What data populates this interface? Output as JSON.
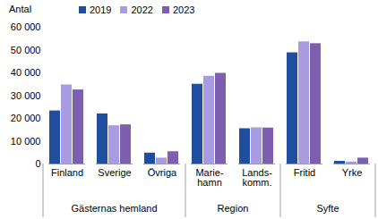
{
  "chart_data": {
    "type": "bar",
    "y_label": "Antal",
    "categories": [
      "Finland",
      "Sverige",
      "Övriga",
      "Marie-\nhamn",
      "Lands-\nkomm.",
      "Fritid",
      "Yrke"
    ],
    "category_groups": [
      {
        "label": "Gästernas hemland",
        "categories": [
          "Finland",
          "Sverige",
          "Övriga"
        ]
      },
      {
        "label": "Region",
        "categories": [
          "Marie-\nhamn",
          "Lands-\nkomm."
        ]
      },
      {
        "label": "Syfte",
        "categories": [
          "Fritid",
          "Yrke"
        ]
      }
    ],
    "series": [
      {
        "name": "2019",
        "color": "#1f4e9e",
        "values": [
          23300,
          22000,
          4800,
          35000,
          15500,
          48800,
          1200
        ]
      },
      {
        "name": "2022",
        "color": "#a99be0",
        "values": [
          34700,
          16800,
          2600,
          38500,
          15900,
          53600,
          900
        ]
      },
      {
        "name": "2023",
        "color": "#7d5fb0",
        "values": [
          32500,
          17200,
          5400,
          39800,
          15800,
          52800,
          2600
        ]
      }
    ],
    "ylim": [
      0,
      60000
    ],
    "yticks": [
      0,
      {
        "value": 10000,
        "label": "10 000"
      },
      {
        "value": 20000,
        "label": "20 000"
      },
      {
        "value": 30000,
        "label": "30 000"
      },
      {
        "value": 40000,
        "label": "40 000"
      },
      {
        "value": 50000,
        "label": "50 000"
      },
      {
        "value": 60000,
        "label": "60 000"
      }
    ],
    "grid": false,
    "legend": "top"
  }
}
